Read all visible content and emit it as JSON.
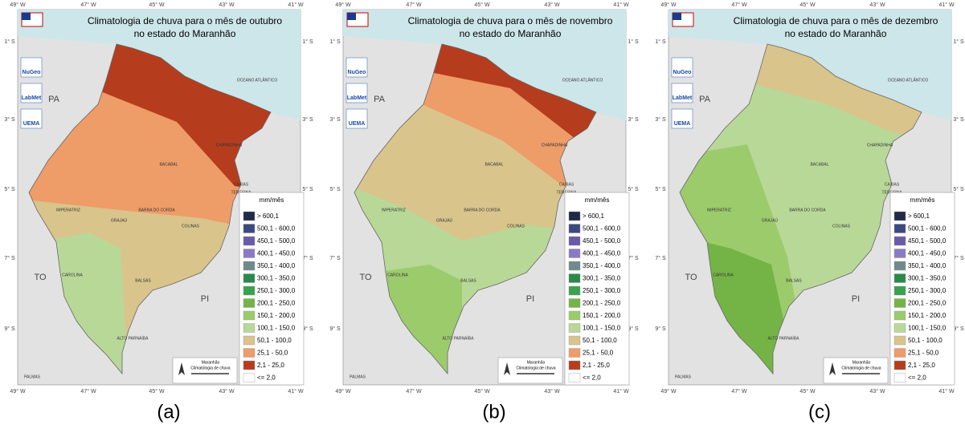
{
  "panels": [
    {
      "title": [
        "Climatologia de chuva para o mês de outubro",
        "no estado do Maranhão"
      ],
      "caption": "(a)"
    },
    {
      "title": [
        "Climatologia de chuva para o mês de novembro",
        "no estado do Maranhão"
      ],
      "caption": "(b)"
    },
    {
      "title": [
        "Climatologia de chuva para o mês de dezembro",
        "no estado do Maranhão"
      ],
      "caption": "(c)"
    }
  ],
  "legend": {
    "title": "mm/mês",
    "entries": [
      {
        "label": "> 600,1",
        "color": "#1f2a4a"
      },
      {
        "label": "500,1 - 600,0",
        "color": "#3a4a80"
      },
      {
        "label": "450,1 - 500,0",
        "color": "#6a5aa8"
      },
      {
        "label": "400,1 - 450,0",
        "color": "#8a7ac4"
      },
      {
        "label": "350,1 - 400,0",
        "color": "#6e8a8a"
      },
      {
        "label": "300,1 - 350,0",
        "color": "#2a8a4a"
      },
      {
        "label": "250,1 - 300,0",
        "color": "#3aa24e"
      },
      {
        "label": "200,1 - 250,0",
        "color": "#74b446"
      },
      {
        "label": "150,1 - 200,0",
        "color": "#9ccb6c"
      },
      {
        "label": "100,1 - 150,0",
        "color": "#b8d898"
      },
      {
        "label": "50,1 - 100,0",
        "color": "#d9c48c"
      },
      {
        "label": "25,1 - 50,0",
        "color": "#ee9c68"
      },
      {
        "label": "2,1 - 25,0",
        "color": "#b63c1e"
      },
      {
        "label": "<= 2,0",
        "color": "#ffffff"
      }
    ]
  },
  "lon_labels": [
    "49° W",
    "47° W",
    "45° W",
    "43° W",
    "41° W"
  ],
  "lat_labels": [
    "1° S",
    "3° S",
    "5° S",
    "7° S",
    "9° S"
  ],
  "states": [
    "PA",
    "TO",
    "PI"
  ],
  "cities": [
    "BACABAL",
    "CAXIAS",
    "IMPERATRIZ",
    "BALSAS",
    "GRAJAÚ",
    "BARRA DO CORDA",
    "CHAPADINHA",
    "COLINAS",
    "CAROLINA",
    "ALTO PARNAÍBA",
    "TERESINA",
    "PALMAS",
    "OCEANO ATLÂNTICO"
  ],
  "logos": [
    "NuGeo",
    "LabMet",
    "UEMA"
  ],
  "scale_box": [
    "Maranhão",
    "Climatologia de chuva"
  ]
}
